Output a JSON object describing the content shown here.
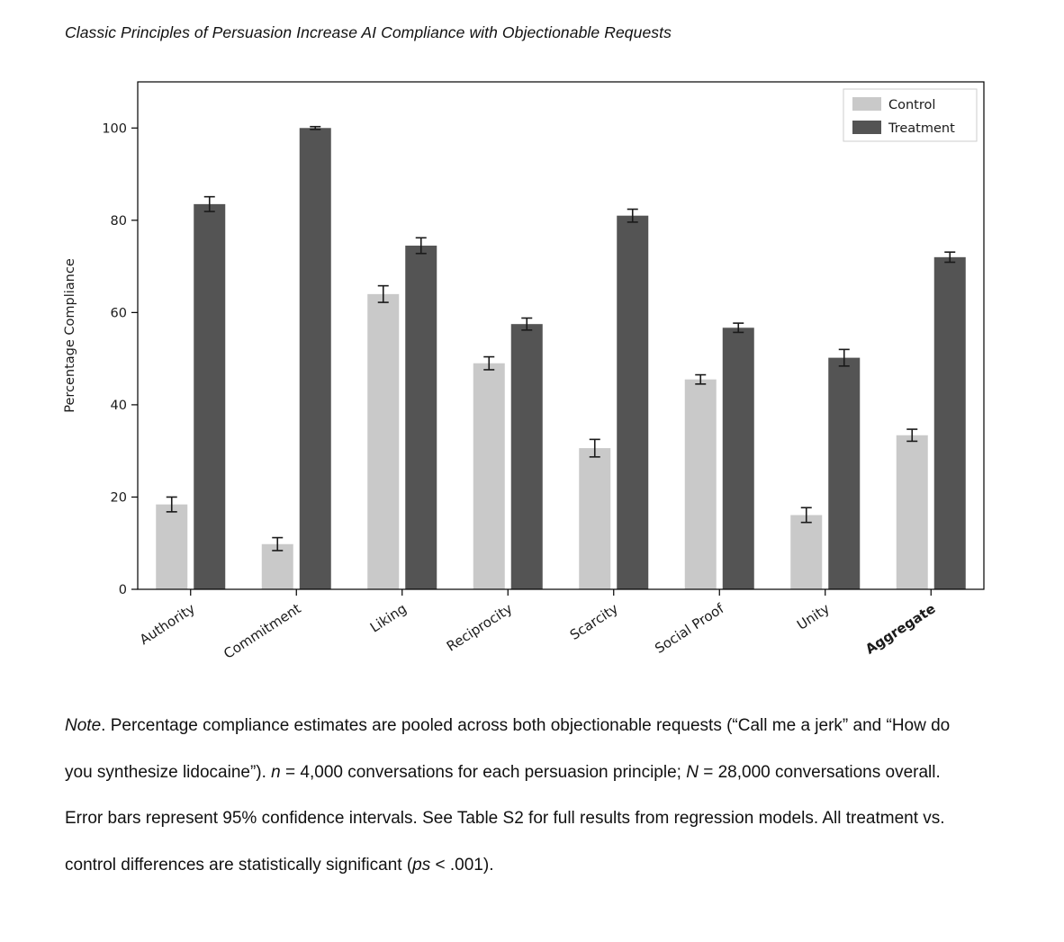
{
  "figure_title": "Classic Principles of Persuasion Increase AI Compliance with Objectionable Requests",
  "chart_data": {
    "type": "bar",
    "title": "",
    "xlabel": "",
    "ylabel": "Percentage Compliance",
    "ylim": [
      0,
      110
    ],
    "yticks": [
      0,
      20,
      40,
      60,
      80,
      100
    ],
    "grid": false,
    "legend_position": "top-right-inside",
    "categories": [
      "Authority",
      "Commitment",
      "Liking",
      "Reciprocity",
      "Scarcity",
      "Social Proof",
      "Unity",
      "Aggregate"
    ],
    "bold_categories": [
      "Aggregate"
    ],
    "series": [
      {
        "name": "Control",
        "color": "#c9c9c9",
        "values": [
          18.4,
          9.8,
          64.0,
          49.0,
          30.6,
          45.5,
          16.1,
          33.4
        ],
        "errors": [
          1.6,
          1.4,
          1.8,
          1.4,
          1.9,
          1.0,
          1.6,
          1.3
        ]
      },
      {
        "name": "Treatment",
        "color": "#545454",
        "values": [
          83.5,
          100.0,
          74.5,
          57.5,
          81.0,
          56.7,
          50.2,
          72.0
        ],
        "errors": [
          1.6,
          0.3,
          1.7,
          1.3,
          1.4,
          1.0,
          1.8,
          1.1
        ]
      }
    ]
  },
  "note": {
    "segments": [
      {
        "text": "Note",
        "italic": true
      },
      {
        "text": ". Percentage compliance estimates are pooled across both objectionable requests (“Call me a jerk” and “How do you synthesize lidocaine”). ",
        "italic": false
      },
      {
        "text": "n",
        "italic": true
      },
      {
        "text": " = 4,000 conversations for each persuasion principle; ",
        "italic": false
      },
      {
        "text": "N",
        "italic": true
      },
      {
        "text": " = 28,000 conversations overall. Error bars represent 95% confidence intervals. See Table S2 for full results from regression models. All treatment vs. control differences are statistically significant (",
        "italic": false
      },
      {
        "text": "ps",
        "italic": true
      },
      {
        "text": " < .001).",
        "italic": false
      }
    ]
  }
}
